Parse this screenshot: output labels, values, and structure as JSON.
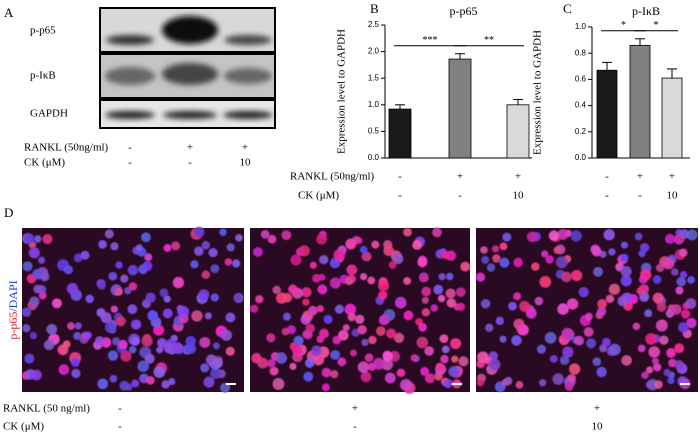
{
  "panel_a": {
    "letter": "A",
    "bands": [
      "p-p65",
      "p-IκB",
      "GAPDH"
    ],
    "rows": [
      {
        "label": "RANKL (50ng/ml)",
        "cells": [
          "-",
          "+",
          "+"
        ]
      },
      {
        "label": "CK  (μM)",
        "cells": [
          "-",
          "-",
          "10"
        ]
      }
    ]
  },
  "treatment_labels": [
    "RANKL (50ng/ml)",
    "CK  (μM)"
  ],
  "chart_data": [
    {
      "type": "bar",
      "panel": "B",
      "title": "p-p65",
      "y_label": "Expression level to GAPDH",
      "values": [
        0.92,
        1.86,
        1.0
      ],
      "errors": [
        0.08,
        0.1,
        0.1
      ],
      "colors": [
        "#1a1a1a",
        "#808080",
        "#d9d9d9"
      ],
      "ylim": [
        0,
        2.5
      ],
      "yticks": [
        {
          "value": 0,
          "label": "0.0"
        },
        {
          "value": 0.5,
          "label": "0.5"
        },
        {
          "value": 1,
          "label": "1.0"
        },
        {
          "value": 1.5,
          "label": "1.5"
        },
        {
          "value": 2,
          "label": "2.0"
        },
        {
          "value": 2.5,
          "label": "2.5"
        }
      ],
      "significance": [
        {
          "from": 0,
          "to": 1,
          "label": "***"
        },
        {
          "from": 1,
          "to": 2,
          "label": "**"
        }
      ],
      "treatments": [
        [
          "-",
          "+",
          "+"
        ],
        [
          "-",
          "-",
          "10"
        ]
      ]
    },
    {
      "type": "bar",
      "panel": "C",
      "title": "p-IκB",
      "y_label": "Expression level to GAPDH",
      "values": [
        0.67,
        0.86,
        0.61
      ],
      "errors": [
        0.06,
        0.05,
        0.07
      ],
      "colors": [
        "#1a1a1a",
        "#808080",
        "#d9d9d9"
      ],
      "ylim": [
        0,
        1
      ],
      "yticks": [
        {
          "value": 0,
          "label": "0.0"
        },
        {
          "value": 0.2,
          "label": "0.2"
        },
        {
          "value": 0.4,
          "label": "0.4"
        },
        {
          "value": 0.6,
          "label": "0.6"
        },
        {
          "value": 0.8,
          "label": "0.8"
        },
        {
          "value": 1,
          "label": "1.0"
        }
      ],
      "significance": [
        {
          "from": 0,
          "to": 1,
          "label": "*"
        },
        {
          "from": 1,
          "to": 2,
          "label": "*"
        }
      ],
      "treatments": [
        [
          "-",
          "+",
          "+"
        ],
        [
          "-",
          "-",
          "10"
        ]
      ]
    }
  ],
  "panel_d": {
    "letter": "D",
    "stain": [
      "p-p65",
      "/DAPI"
    ],
    "rows": [
      {
        "label": "RANKL (50 ng/ml)",
        "cells": [
          "-",
          "+",
          "+"
        ]
      },
      {
        "label": "CK  (μM)",
        "cells": [
          "-",
          "-",
          "10"
        ]
      }
    ]
  }
}
